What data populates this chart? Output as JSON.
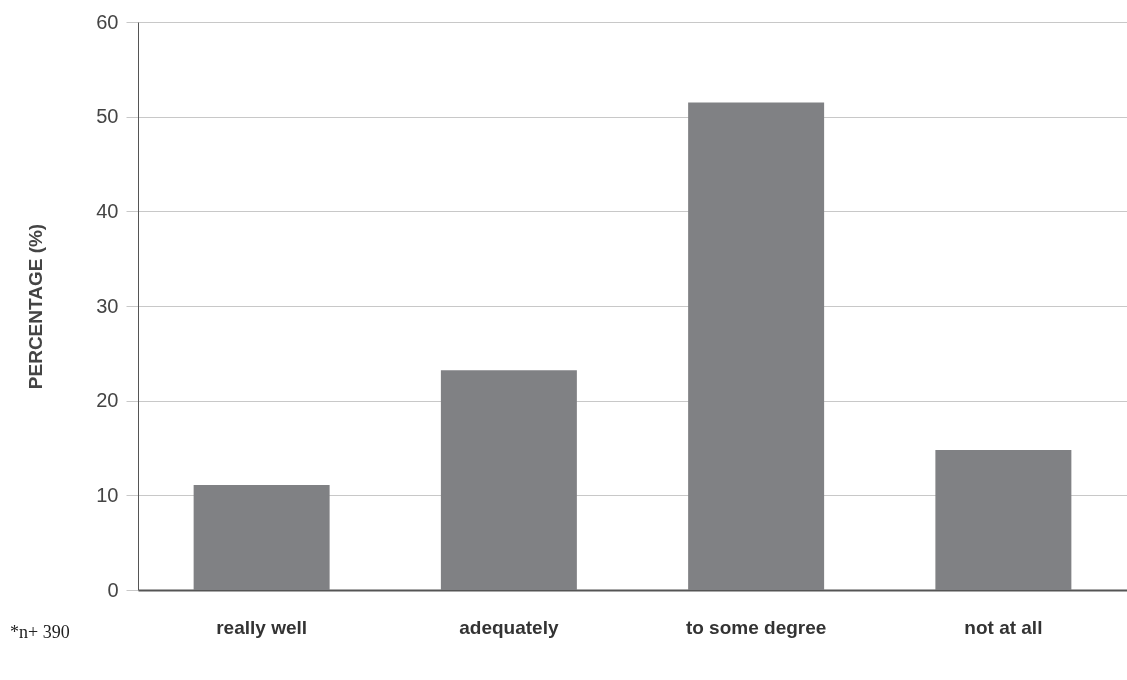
{
  "chart_data": {
    "type": "bar",
    "ylabel": "PERCENTAGE (%)",
    "categories": [
      "really well",
      "adequately",
      "to some degree",
      "not at all"
    ],
    "values": [
      11.1,
      23.2,
      51.5,
      14.8
    ],
    "color": "#808184",
    "ylim": [
      0,
      60
    ],
    "yticks": [
      0,
      10,
      20,
      30,
      40,
      50,
      60
    ],
    "grid": "y",
    "annotations": [
      "*n+ 390"
    ]
  }
}
